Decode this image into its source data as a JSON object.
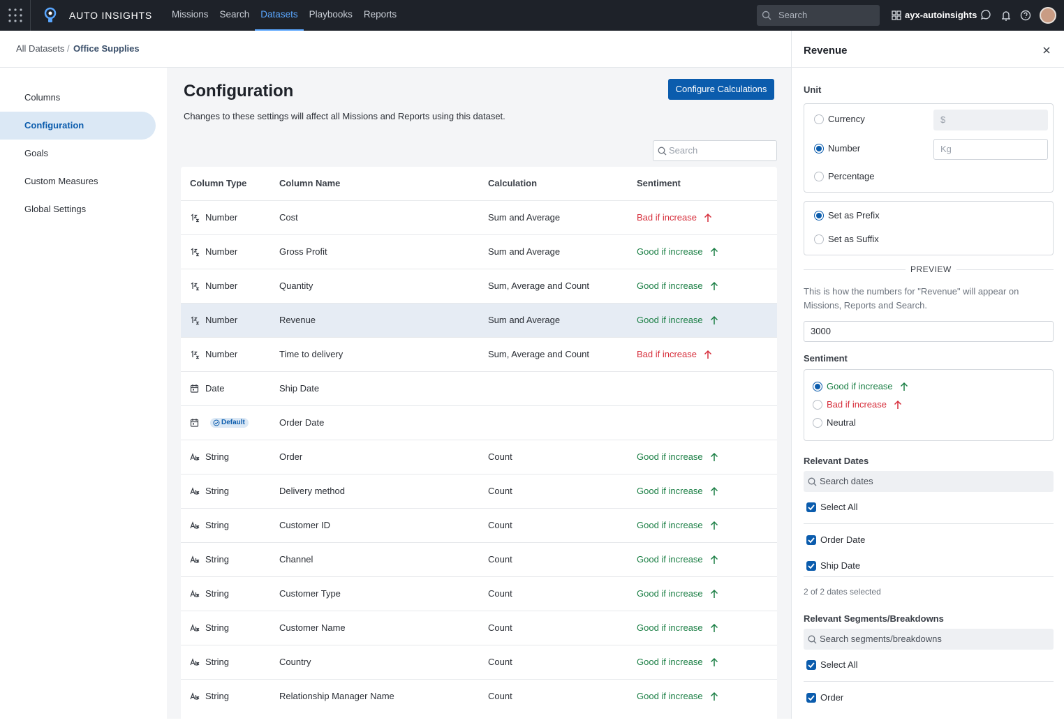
{
  "nav": {
    "brand": "AUTO INSIGHTS",
    "links": [
      {
        "label": "Missions",
        "active": false
      },
      {
        "label": "Search",
        "active": false
      },
      {
        "label": "Datasets",
        "active": true
      },
      {
        "label": "Playbooks",
        "active": false
      },
      {
        "label": "Reports",
        "active": false
      }
    ],
    "search_placeholder": "Search",
    "workspace": "ayx-autoinsights"
  },
  "breadcrumb": [
    "All Datasets",
    "Office Supplies"
  ],
  "sidebar": {
    "items": [
      {
        "label": "Columns",
        "active": false
      },
      {
        "label": "Configuration",
        "active": true
      },
      {
        "label": "Goals",
        "active": false
      },
      {
        "label": "Custom Measures",
        "active": false
      },
      {
        "label": "Global Settings",
        "active": false
      }
    ]
  },
  "main": {
    "title": "Configuration",
    "description": "Changes to these settings will affect all Missions and Reports using this dataset.",
    "button": "Configure Calculations",
    "search_placeholder": "Search",
    "table": {
      "headers": [
        "Column Type",
        "Column Name",
        "Calculation",
        "Sentiment"
      ],
      "rows": [
        {
          "icon": "number",
          "type": "Number",
          "name": "Cost",
          "calculation": "Sum and Average",
          "sentiment": "Bad if increase",
          "color": "#d62d3a"
        },
        {
          "icon": "number",
          "type": "Number",
          "name": "Gross Profit",
          "calculation": "Sum and Average",
          "sentiment": "Good if increase",
          "color": "#1b7f45"
        },
        {
          "icon": "number",
          "type": "Number",
          "name": "Quantity",
          "calculation": "Sum, Average and Count",
          "sentiment": "Good if increase",
          "color": "#1b7f45"
        },
        {
          "icon": "number",
          "type": "Number",
          "name": "Revenue",
          "calculation": "Sum and Average",
          "sentiment": "Good if increase",
          "color": "#1b7f45",
          "selected": true
        },
        {
          "icon": "number",
          "type": "Number",
          "name": "Time to delivery",
          "calculation": "Sum, Average and Count",
          "sentiment": "Bad if increase",
          "color": "#d62d3a"
        },
        {
          "icon": "date",
          "type": "Date",
          "name": "Ship Date"
        },
        {
          "icon": "date",
          "badge": "Default",
          "name": "Order Date"
        },
        {
          "icon": "string",
          "type": "String",
          "name": "Order",
          "calculation": "Count",
          "sentiment": "Good if increase",
          "color": "#1b7f45"
        },
        {
          "icon": "string",
          "type": "String",
          "name": "Delivery method",
          "calculation": "Count",
          "sentiment": "Good if increase",
          "color": "#1b7f45"
        },
        {
          "icon": "string",
          "type": "String",
          "name": "Customer ID",
          "calculation": "Count",
          "sentiment": "Good if increase",
          "color": "#1b7f45"
        },
        {
          "icon": "string",
          "type": "String",
          "name": "Channel",
          "calculation": "Count",
          "sentiment": "Good if increase",
          "color": "#1b7f45"
        },
        {
          "icon": "string",
          "type": "String",
          "name": "Customer Type",
          "calculation": "Count",
          "sentiment": "Good if increase",
          "color": "#1b7f45"
        },
        {
          "icon": "string",
          "type": "String",
          "name": "Customer Name",
          "calculation": "Count",
          "sentiment": "Good if increase",
          "color": "#1b7f45"
        },
        {
          "icon": "string",
          "type": "String",
          "name": "Country",
          "calculation": "Count",
          "sentiment": "Good if increase",
          "color": "#1b7f45"
        },
        {
          "icon": "string",
          "type": "String",
          "name": "Relationship Manager Name",
          "calculation": "Count",
          "sentiment": "Good if increase",
          "color": "#1b7f45"
        }
      ]
    }
  },
  "panel": {
    "title": "Revenue",
    "unit_label": "Unit",
    "units": [
      {
        "label": "Currency",
        "input": "$",
        "checked": false,
        "disabled": true
      },
      {
        "label": "Number",
        "input": "Kg",
        "checked": true,
        "disabled": false
      },
      {
        "label": "Percentage",
        "checked": false
      }
    ],
    "positions": [
      {
        "label": "Set as Prefix",
        "checked": true
      },
      {
        "label": "Set as Suffix",
        "checked": false
      }
    ],
    "preview_heading": "PREVIEW",
    "preview_text": "This is how the numbers for \"Revenue\" will appear on Missions, Reports and Search.",
    "preview_value": "3000",
    "sentiment_label": "Sentiment",
    "sentiments": [
      {
        "label": "Good if increase",
        "color": "#1b7f45",
        "checked": true,
        "arrow": true
      },
      {
        "label": "Bad if increase",
        "color": "#d62d3a",
        "checked": false,
        "arrow": true
      },
      {
        "label": "Neutral",
        "color": "#2b2f36",
        "checked": false,
        "arrow": false
      }
    ],
    "dates": {
      "label": "Relevant Dates",
      "search_placeholder": "Search dates",
      "select_all": "Select All",
      "items": [
        "Order Date",
        "Ship Date"
      ],
      "summary": "2 of 2 dates selected"
    },
    "segments": {
      "label": "Relevant Segments/Breakdowns",
      "search_placeholder": "Search segments/breakdowns",
      "select_all": "Select All",
      "items": [
        "Order"
      ]
    }
  }
}
